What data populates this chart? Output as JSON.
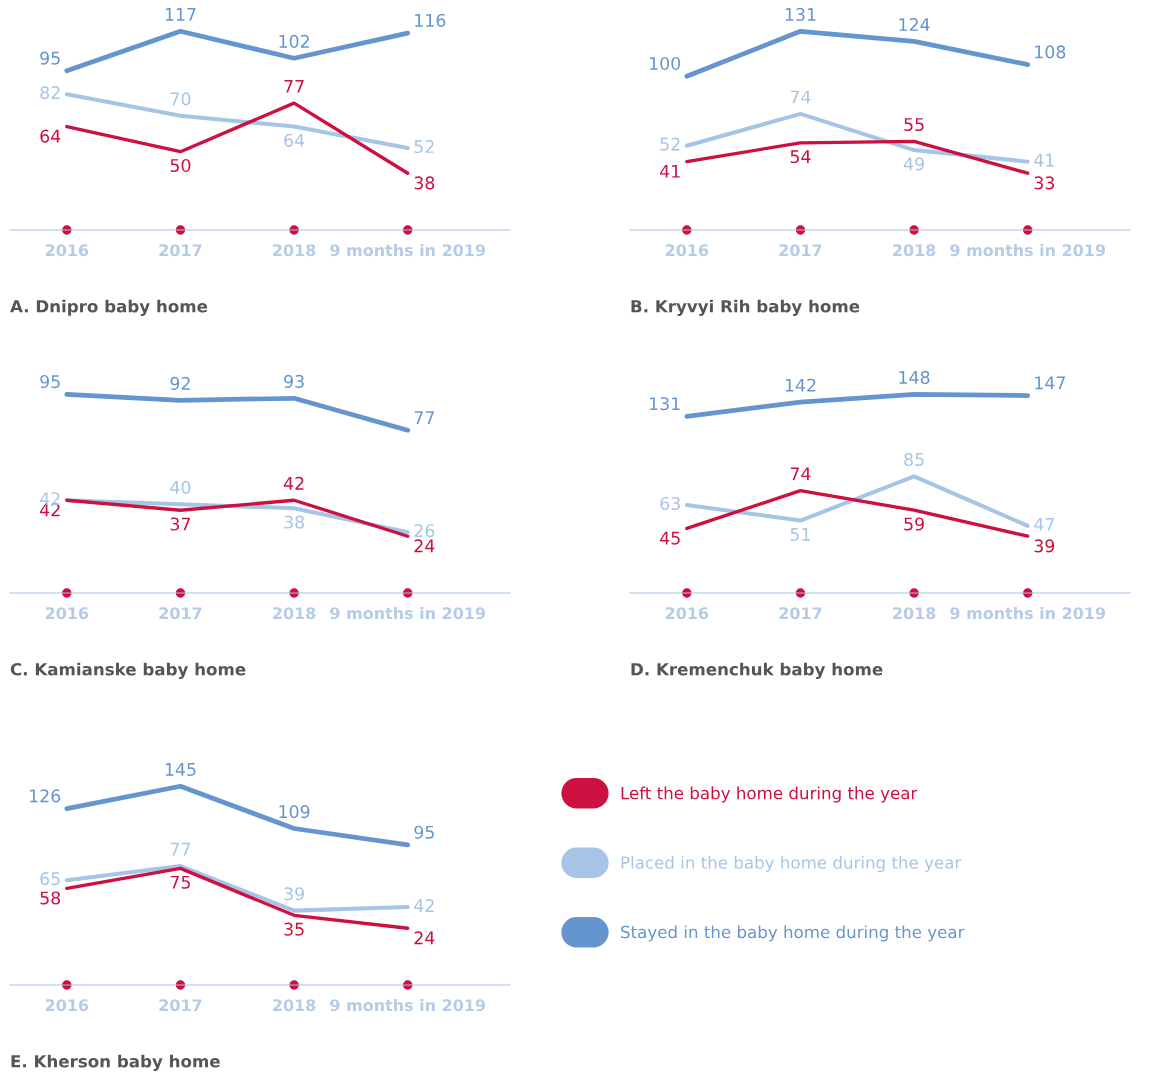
{
  "chart_data": [
    {
      "type": "line",
      "title": "A. Dnipro baby home",
      "categories": [
        "2016",
        "2017",
        "2018",
        "9 months in 2019"
      ],
      "data_labels": true,
      "grid": false,
      "legend": false,
      "tick_labels": "x",
      "marker": "none",
      "line_style": "solid",
      "series": [
        {
          "color": "#cc1040",
          "values": [
            64,
            50,
            77,
            38
          ]
        },
        {
          "color": "#a6c4e6",
          "values": [
            82,
            70,
            64,
            52
          ]
        },
        {
          "color": "#6495cf",
          "values": [
            95,
            117,
            102,
            116
          ]
        }
      ]
    },
    {
      "type": "line",
      "title": "B. Kryvyi Rih baby home",
      "categories": [
        "2016",
        "2017",
        "2018",
        "9 months in 2019"
      ],
      "data_labels": true,
      "grid": false,
      "legend": false,
      "tick_labels": "x",
      "marker": "none",
      "line_style": "solid",
      "series": [
        {
          "color": "#cc1040",
          "values": [
            41,
            54,
            55,
            33
          ]
        },
        {
          "color": "#a6c4e6",
          "values": [
            52,
            74,
            49,
            41
          ]
        },
        {
          "color": "#6495cf",
          "values": [
            100,
            131,
            124,
            108
          ]
        }
      ]
    },
    {
      "type": "line",
      "title": "C. Kamianske baby home",
      "categories": [
        "2016",
        "2017",
        "2018",
        "9 months in 2019"
      ],
      "data_labels": true,
      "grid": false,
      "legend": false,
      "tick_labels": "x",
      "marker": "none",
      "line_style": "solid",
      "series": [
        {
          "color": "#cc1040",
          "values": [
            42,
            37,
            42,
            24
          ]
        },
        {
          "color": "#a6c4e6",
          "values": [
            42,
            40,
            38,
            26
          ]
        },
        {
          "color": "#6495cf",
          "values": [
            95,
            92,
            93,
            77
          ]
        }
      ]
    },
    {
      "type": "line",
      "title": "D. Kremenchuk baby home",
      "categories": [
        "2016",
        "2017",
        "2018",
        "9 months in 2019"
      ],
      "data_labels": true,
      "grid": false,
      "legend": false,
      "tick_labels": "x",
      "marker": "none",
      "line_style": "solid",
      "series": [
        {
          "color": "#cc1040",
          "values": [
            45,
            74,
            59,
            39
          ]
        },
        {
          "color": "#a6c4e6",
          "values": [
            63,
            51,
            85,
            47
          ]
        },
        {
          "color": "#6495cf",
          "values": [
            131,
            142,
            148,
            147
          ]
        }
      ]
    },
    {
      "type": "line",
      "title": "E. Kherson baby home",
      "categories": [
        "2016",
        "2017",
        "2018",
        "9 months in 2019"
      ],
      "data_labels": true,
      "grid": false,
      "legend": "right",
      "tick_labels": "x",
      "marker": "none",
      "line_style": "solid",
      "series": [
        {
          "name": "Left the baby home during the year",
          "color": "#cc1040",
          "values": [
            58,
            75,
            35,
            24
          ]
        },
        {
          "name": "Placed in the baby home during the year",
          "color": "#a6c4e6",
          "values": [
            65,
            77,
            39,
            42
          ]
        },
        {
          "name": "Stayed in the baby home during the year",
          "color": "#6495cf",
          "values": [
            126,
            145,
            109,
            95
          ]
        }
      ]
    }
  ]
}
